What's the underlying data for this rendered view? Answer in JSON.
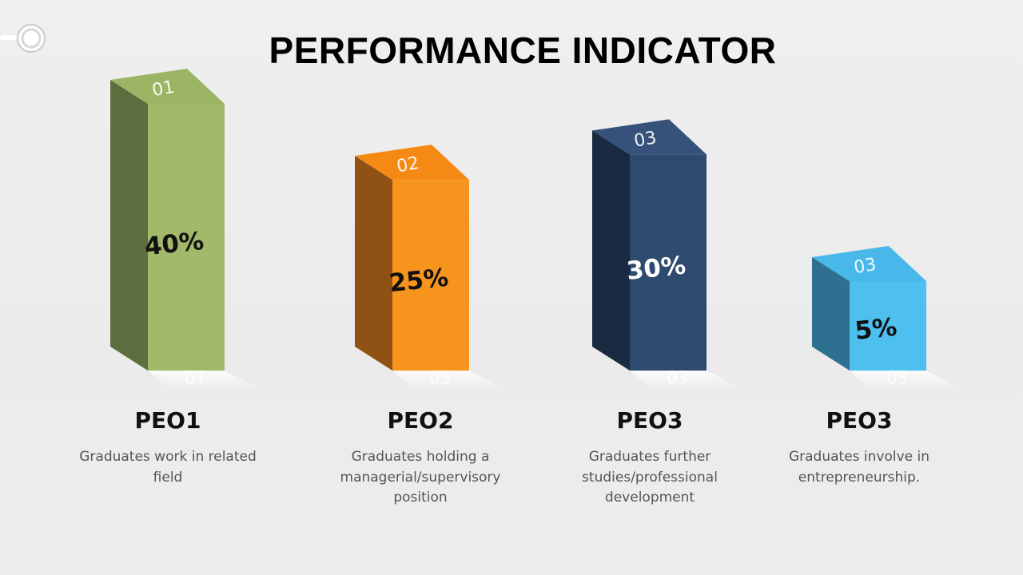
{
  "title": "PERFORMANCE INDICATOR",
  "chart_data": {
    "type": "bar",
    "title": "PERFORMANCE INDICATOR",
    "categories": [
      "PEO1",
      "PEO2",
      "PEO3",
      "PEO3"
    ],
    "values": [
      40,
      25,
      30,
      5
    ],
    "value_labels": [
      "40%",
      "25%",
      "30%",
      "5%"
    ],
    "top_labels": [
      "01",
      "02",
      "03",
      "03"
    ],
    "descriptions": [
      "Graduates work in related field",
      "Graduates holding a managerial/supervisory position",
      "Graduates further studies/professional development",
      "Graduates involve in entrepreneurship."
    ],
    "colors": [
      {
        "front": "#a1b968",
        "side": "#5d6e3e",
        "top": "#9bb565",
        "text": "#111111"
      },
      {
        "front": "#f7941e",
        "side": "#8f5214",
        "top": "#f48a14",
        "text": "#111111"
      },
      {
        "front": "#2e4a6e",
        "side": "#1a2a40",
        "top": "#36527a",
        "text": "#ffffff"
      },
      {
        "front": "#4dc0ef",
        "side": "#2e7090",
        "top": "#48b8ea",
        "text": "#111111"
      }
    ],
    "style": "3d-columns",
    "legend": "none",
    "grid": false
  }
}
